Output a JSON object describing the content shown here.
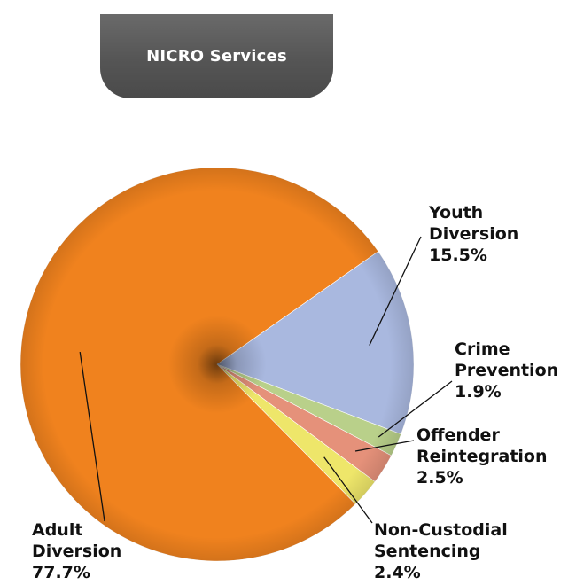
{
  "chart_data": {
    "type": "pie",
    "title": "NICRO Services",
    "slices": [
      {
        "key": "youth",
        "name_lines": [
          "Youth",
          "Diversion"
        ],
        "value": 15.5,
        "value_label": "15.5%",
        "color": "#a9b8df"
      },
      {
        "key": "crime",
        "name_lines": [
          "Crime",
          "Prevention"
        ],
        "value": 1.9,
        "value_label": "1.9%",
        "color": "#b9d08a"
      },
      {
        "key": "offender",
        "name_lines": [
          "Offender",
          "Reintegration"
        ],
        "value": 2.5,
        "value_label": "2.5%",
        "color": "#e5917a"
      },
      {
        "key": "noncustodial",
        "name_lines": [
          "Non-Custodial",
          "Sentencing"
        ],
        "value": 2.4,
        "value_label": "2.4%",
        "color": "#eee66a"
      },
      {
        "key": "adult",
        "name_lines": [
          "Adult",
          "Diversion"
        ],
        "value": 77.7,
        "value_label": "77.7%",
        "color": "#f0821e"
      }
    ]
  }
}
